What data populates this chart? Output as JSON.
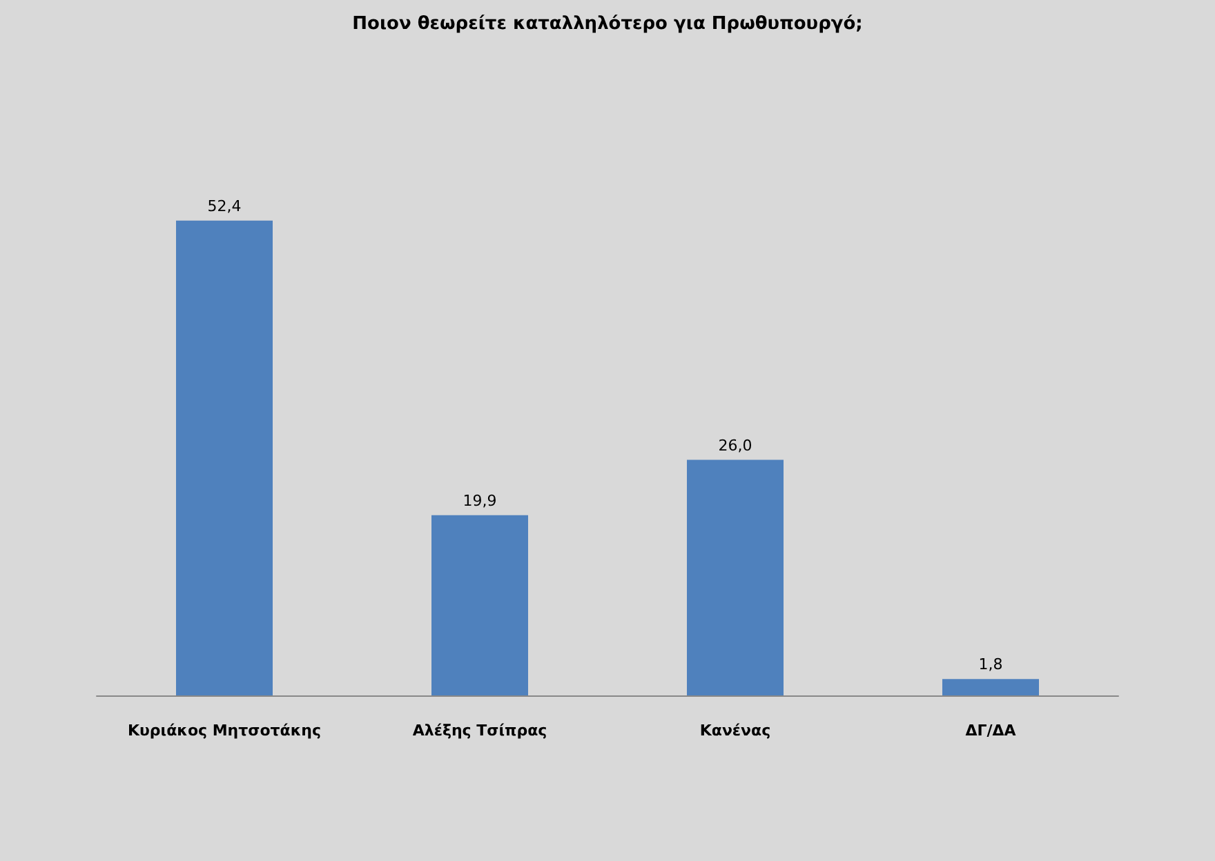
{
  "chart_data": {
    "type": "bar",
    "title": "Ποιον θεωρείτε καταλληλότερο για Πρωθυπουργό;",
    "categories": [
      "Κυριάκος Μητσοτάκης",
      "Αλέξης Τσίπρας",
      "Κανένας",
      "ΔΓ/ΔΑ"
    ],
    "values": [
      52.4,
      19.9,
      26.0,
      1.8
    ],
    "value_labels": [
      "52,4",
      "19,9",
      "26,0",
      "1,8"
    ],
    "color": "#4f81bd"
  }
}
